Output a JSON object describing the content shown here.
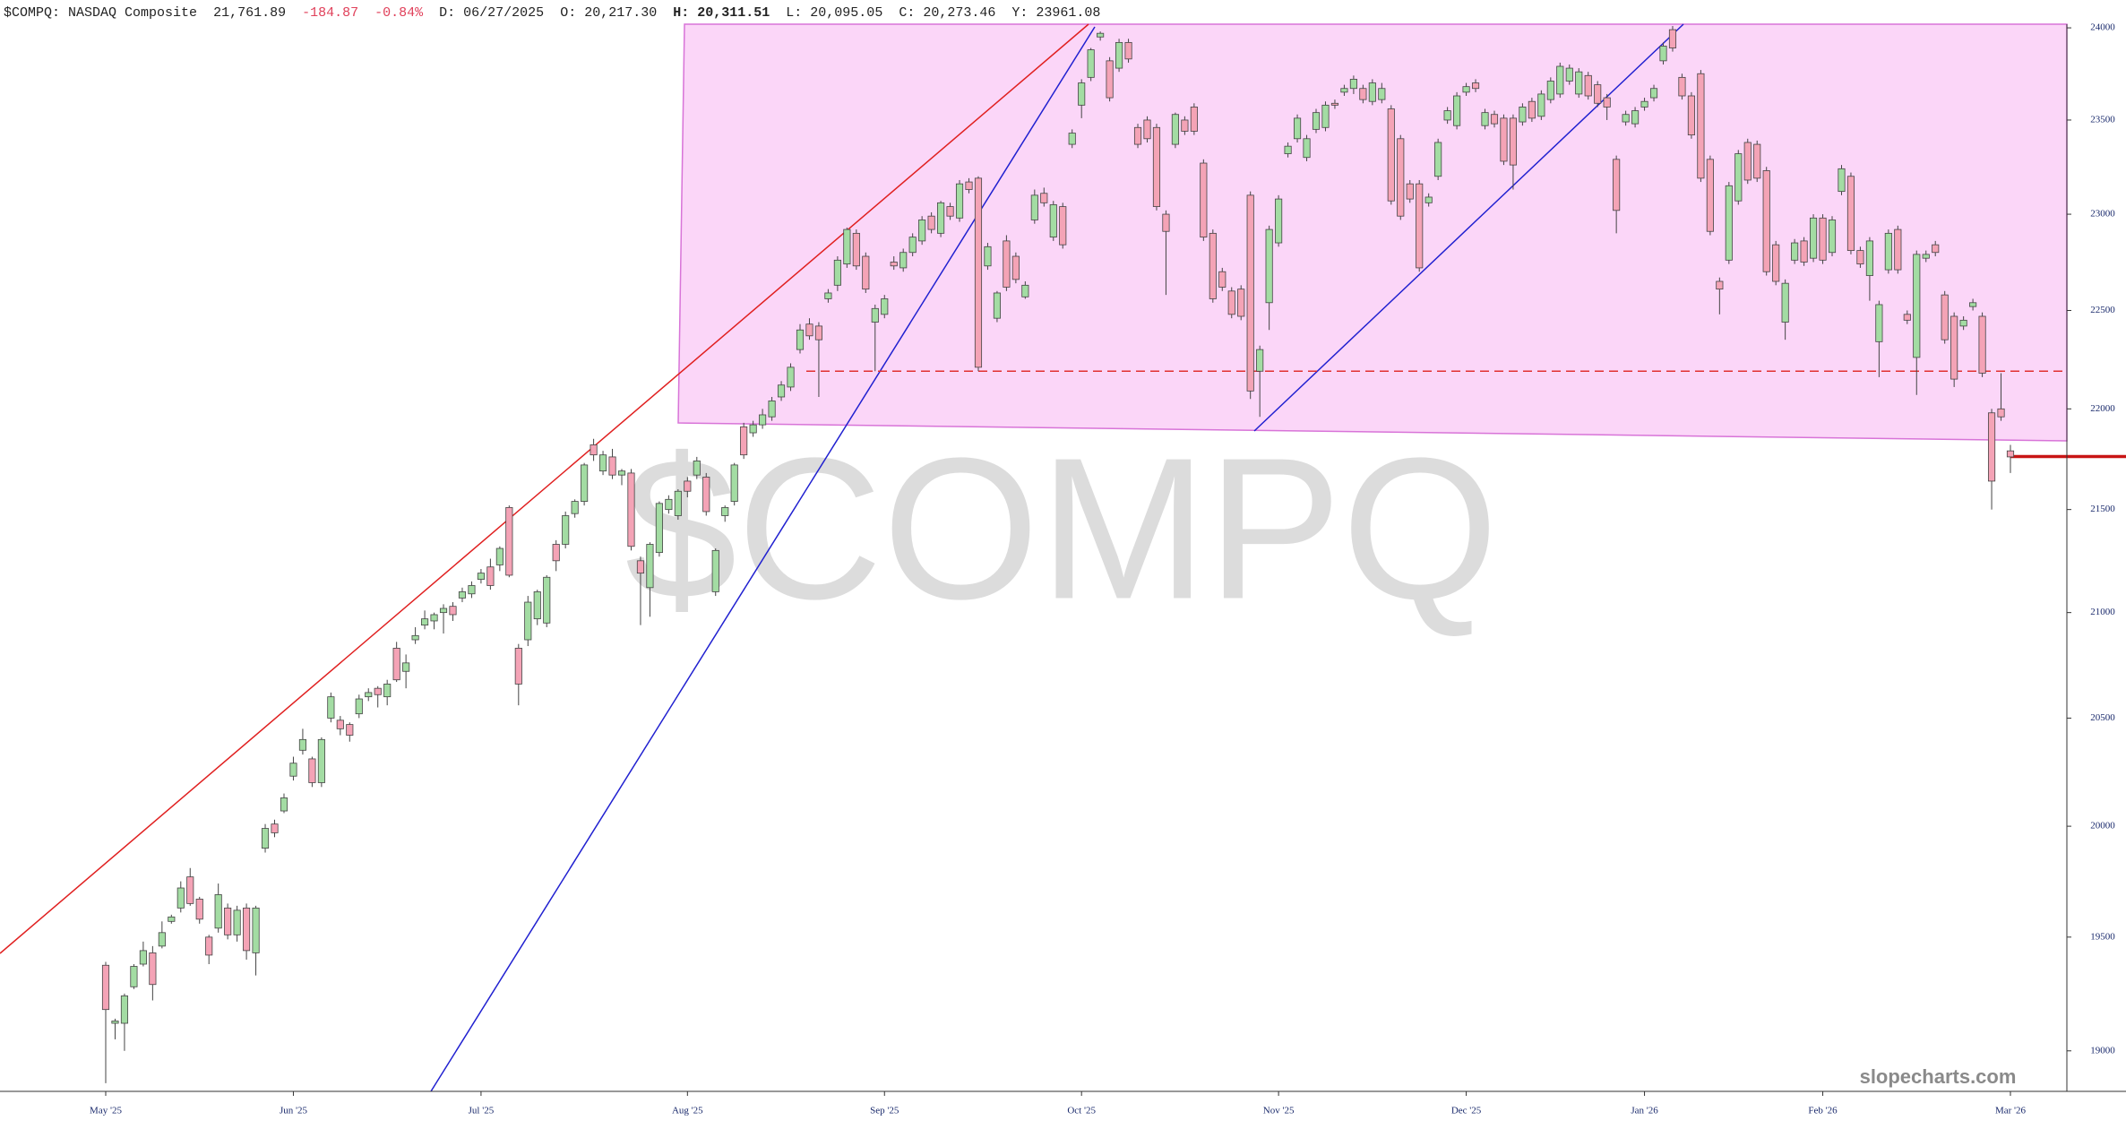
{
  "header": {
    "symbol": "$COMPQ: NASDAQ Composite",
    "last": "21,761.89",
    "change": "-184.87",
    "change_pct": "-0.84%",
    "date": "D: 06/27/2025",
    "open": "O: 20,217.30",
    "high": "H: 20,311.51",
    "low": "L: 20,095.05",
    "close": "C: 20,273.46",
    "y": "Y:  23961.08"
  },
  "brand": "slopecharts.com",
  "chart_data": {
    "type": "candlestick",
    "watermark": "$COMPQ",
    "up_color": "#a3dca3",
    "down_color": "#f4a3b6",
    "edge_color": "#444444",
    "log_scale": true,
    "ylim": [
      18825,
      24020
    ],
    "yticks": [
      19000,
      19500,
      20000,
      20500,
      21000,
      21500,
      22000,
      22500,
      23000,
      23500,
      24000
    ],
    "levels": [
      {
        "value": 22190,
        "style": "dashed",
        "color": "#e03030"
      },
      {
        "value": 21762,
        "style": "solid",
        "color": "#c81414"
      }
    ],
    "categories": [
      "May '25",
      null,
      null,
      null,
      null,
      null,
      null,
      null,
      null,
      null,
      null,
      null,
      null,
      null,
      null,
      null,
      null,
      null,
      null,
      null,
      "Jun '25",
      null,
      null,
      null,
      null,
      null,
      null,
      null,
      null,
      null,
      null,
      null,
      null,
      null,
      null,
      null,
      null,
      null,
      null,
      null,
      "Jul '25",
      null,
      null,
      null,
      null,
      null,
      null,
      null,
      null,
      null,
      null,
      null,
      null,
      null,
      null,
      null,
      null,
      null,
      null,
      null,
      null,
      null,
      "Aug '25",
      null,
      null,
      null,
      null,
      null,
      null,
      null,
      null,
      null,
      null,
      null,
      null,
      null,
      null,
      null,
      null,
      null,
      null,
      null,
      null,
      "Sep '25",
      null,
      null,
      null,
      null,
      null,
      null,
      null,
      null,
      null,
      null,
      null,
      null,
      null,
      null,
      null,
      null,
      null,
      null,
      null,
      null,
      "Oct '25",
      null,
      null,
      null,
      null,
      null,
      null,
      null,
      null,
      null,
      null,
      null,
      null,
      null,
      null,
      null,
      null,
      null,
      null,
      null,
      null,
      "Nov '25",
      null,
      null,
      null,
      null,
      null,
      null,
      null,
      null,
      null,
      null,
      null,
      null,
      null,
      null,
      null,
      null,
      null,
      null,
      null,
      "Dec '25",
      null,
      null,
      null,
      null,
      null,
      null,
      null,
      null,
      null,
      null,
      null,
      null,
      null,
      null,
      null,
      null,
      null,
      null,
      "Jan '26",
      null,
      null,
      null,
      null,
      null,
      null,
      null,
      null,
      null,
      null,
      null,
      null,
      null,
      null,
      null,
      null,
      null,
      null,
      "Feb '26",
      null,
      null,
      null,
      null,
      null,
      null,
      null,
      null,
      null,
      null,
      null,
      null,
      null,
      null,
      null,
      null,
      null,
      null,
      null,
      "Mar '26"
    ],
    "ohlc": [
      [
        19375,
        19390,
        18860,
        19180
      ],
      [
        19120,
        19140,
        19050,
        19130
      ],
      [
        19120,
        19250,
        19000,
        19240
      ],
      [
        19280,
        19380,
        19270,
        19370
      ],
      [
        19380,
        19480,
        19370,
        19440
      ],
      [
        19430,
        19460,
        19220,
        19290
      ],
      [
        19460,
        19570,
        19450,
        19520
      ],
      [
        19570,
        19600,
        19560,
        19590
      ],
      [
        19630,
        19750,
        19610,
        19720
      ],
      [
        19770,
        19810,
        19640,
        19650
      ],
      [
        19670,
        19680,
        19560,
        19580
      ],
      [
        19500,
        19510,
        19380,
        19420
      ],
      [
        19540,
        19740,
        19520,
        19690
      ],
      [
        19630,
        19650,
        19490,
        19510
      ],
      [
        19510,
        19640,
        19480,
        19620
      ],
      [
        19630,
        19650,
        19400,
        19440
      ],
      [
        19430,
        19640,
        19330,
        19630
      ],
      [
        19900,
        20010,
        19880,
        19990
      ],
      [
        20010,
        20030,
        19950,
        19970
      ],
      [
        20070,
        20150,
        20060,
        20130
      ],
      [
        20230,
        20320,
        20210,
        20290
      ],
      [
        20350,
        20450,
        20330,
        20400
      ],
      [
        20310,
        20320,
        20180,
        20200
      ],
      [
        20200,
        20410,
        20180,
        20400
      ],
      [
        20500,
        20620,
        20480,
        20600
      ],
      [
        20490,
        20510,
        20420,
        20450
      ],
      [
        20470,
        20480,
        20390,
        20420
      ],
      [
        20520,
        20610,
        20500,
        20590
      ],
      [
        20600,
        20640,
        20580,
        20620
      ],
      [
        20640,
        20650,
        20550,
        20610
      ],
      [
        20600,
        20680,
        20560,
        20660
      ],
      [
        20830,
        20860,
        20670,
        20680
      ],
      [
        20720,
        20800,
        20640,
        20760
      ],
      [
        20870,
        20930,
        20850,
        20890
      ],
      [
        20940,
        21010,
        20920,
        20970
      ],
      [
        20960,
        21000,
        20920,
        20990
      ],
      [
        21000,
        21040,
        20900,
        21020
      ],
      [
        21030,
        21050,
        20960,
        20990
      ],
      [
        21070,
        21120,
        21050,
        21100
      ],
      [
        21090,
        21150,
        21070,
        21130
      ],
      [
        21160,
        21210,
        21140,
        21190
      ],
      [
        21220,
        21260,
        21110,
        21130
      ],
      [
        21230,
        21320,
        21200,
        21310
      ],
      [
        21510,
        21520,
        21170,
        21180
      ],
      [
        20830,
        20850,
        20560,
        20660
      ],
      [
        20870,
        21080,
        20840,
        21050
      ],
      [
        20970,
        21110,
        20940,
        21100
      ],
      [
        20950,
        21180,
        20930,
        21170
      ],
      [
        21330,
        21350,
        21200,
        21250
      ],
      [
        21330,
        21490,
        21310,
        21470
      ],
      [
        21480,
        21550,
        21460,
        21540
      ],
      [
        21540,
        21730,
        21520,
        21720
      ],
      [
        21820,
        21850,
        21740,
        21770
      ],
      [
        21690,
        21790,
        21670,
        21770
      ],
      [
        21760,
        21800,
        21650,
        21670
      ],
      [
        21670,
        21700,
        21620,
        21690
      ],
      [
        21680,
        21700,
        21300,
        21320
      ],
      [
        21250,
        21270,
        20940,
        21190
      ],
      [
        21120,
        21340,
        20980,
        21330
      ],
      [
        21290,
        21540,
        21270,
        21530
      ],
      [
        21500,
        21570,
        21480,
        21550
      ],
      [
        21470,
        21600,
        21450,
        21590
      ],
      [
        21640,
        21660,
        21560,
        21590
      ],
      [
        21670,
        21760,
        21650,
        21740
      ],
      [
        21660,
        21680,
        21470,
        21490
      ],
      [
        21100,
        21310,
        21080,
        21300
      ],
      [
        21470,
        21520,
        21440,
        21510
      ],
      [
        21540,
        21730,
        21520,
        21720
      ],
      [
        21910,
        21930,
        21750,
        21770
      ],
      [
        21880,
        21940,
        21860,
        21920
      ],
      [
        21920,
        22000,
        21900,
        21970
      ],
      [
        21960,
        22060,
        21940,
        22040
      ],
      [
        22060,
        22140,
        22040,
        22120
      ],
      [
        22110,
        22230,
        22090,
        22210
      ],
      [
        22300,
        22430,
        22280,
        22400
      ],
      [
        22430,
        22460,
        22350,
        22370
      ],
      [
        22420,
        22440,
        22060,
        22350
      ],
      [
        22560,
        22610,
        22540,
        22590
      ],
      [
        22630,
        22780,
        22600,
        22760
      ],
      [
        22740,
        22930,
        22720,
        22920
      ],
      [
        22900,
        22920,
        22710,
        22730
      ],
      [
        22780,
        22800,
        22590,
        22610
      ],
      [
        22440,
        22530,
        22190,
        22510
      ],
      [
        22480,
        22580,
        22460,
        22560
      ],
      [
        22750,
        22780,
        22710,
        22730
      ],
      [
        22720,
        22820,
        22700,
        22800
      ],
      [
        22800,
        22900,
        22780,
        22880
      ],
      [
        22860,
        22990,
        22840,
        22970
      ],
      [
        22990,
        23010,
        22900,
        22920
      ],
      [
        22900,
        23070,
        22880,
        23060
      ],
      [
        23040,
        23060,
        22970,
        22990
      ],
      [
        22980,
        23180,
        22960,
        23160
      ],
      [
        23170,
        23190,
        23110,
        23130
      ],
      [
        23190,
        23200,
        22190,
        22210
      ],
      [
        22730,
        22850,
        22710,
        22830
      ],
      [
        22460,
        22600,
        22440,
        22590
      ],
      [
        22860,
        22890,
        22600,
        22620
      ],
      [
        22780,
        22800,
        22640,
        22660
      ],
      [
        22570,
        22650,
        22560,
        22630
      ],
      [
        22970,
        23130,
        22950,
        23100
      ],
      [
        23110,
        23140,
        23040,
        23060
      ],
      [
        22880,
        23070,
        22860,
        23050
      ],
      [
        23040,
        23060,
        22820,
        22840
      ],
      [
        23370,
        23450,
        23350,
        23430
      ],
      [
        23580,
        23720,
        23510,
        23700
      ],
      [
        23730,
        23890,
        23710,
        23880
      ],
      [
        23950,
        23980,
        23930,
        23970
      ],
      [
        23820,
        23840,
        23600,
        23620
      ],
      [
        23780,
        23940,
        23760,
        23920
      ],
      [
        23920,
        23940,
        23810,
        23830
      ],
      [
        23460,
        23480,
        23350,
        23370
      ],
      [
        23500,
        23520,
        23380,
        23400
      ],
      [
        23460,
        23480,
        23020,
        23040
      ],
      [
        23000,
        23020,
        22580,
        22910
      ],
      [
        23370,
        23540,
        23350,
        23530
      ],
      [
        23500,
        23520,
        23420,
        23440
      ],
      [
        23570,
        23590,
        23420,
        23440
      ],
      [
        23270,
        23290,
        22860,
        22880
      ],
      [
        22900,
        22920,
        22540,
        22560
      ],
      [
        22700,
        22720,
        22600,
        22620
      ],
      [
        22600,
        22620,
        22460,
        22480
      ],
      [
        22610,
        22630,
        22450,
        22470
      ],
      [
        23100,
        23120,
        22050,
        22090
      ],
      [
        22190,
        22320,
        21960,
        22300
      ],
      [
        22540,
        22940,
        22400,
        22920
      ],
      [
        22850,
        23100,
        22830,
        23080
      ],
      [
        23320,
        23380,
        23300,
        23360
      ],
      [
        23400,
        23530,
        23380,
        23510
      ],
      [
        23300,
        23420,
        23280,
        23400
      ],
      [
        23450,
        23560,
        23430,
        23540
      ],
      [
        23460,
        23600,
        23440,
        23580
      ],
      [
        23590,
        23610,
        23560,
        23580
      ],
      [
        23650,
        23690,
        23630,
        23670
      ],
      [
        23670,
        23740,
        23640,
        23720
      ],
      [
        23670,
        23690,
        23590,
        23610
      ],
      [
        23600,
        23720,
        23580,
        23700
      ],
      [
        23610,
        23700,
        23590,
        23670
      ],
      [
        23560,
        23580,
        23050,
        23070
      ],
      [
        23400,
        23420,
        22970,
        22990
      ],
      [
        23160,
        23180,
        23060,
        23080
      ],
      [
        23160,
        23180,
        22700,
        22720
      ],
      [
        23060,
        23110,
        23040,
        23090
      ],
      [
        23200,
        23400,
        23180,
        23380
      ],
      [
        23500,
        23570,
        23480,
        23550
      ],
      [
        23470,
        23650,
        23450,
        23630
      ],
      [
        23650,
        23700,
        23630,
        23680
      ],
      [
        23700,
        23720,
        23650,
        23670
      ],
      [
        23470,
        23560,
        23450,
        23540
      ],
      [
        23530,
        23550,
        23460,
        23480
      ],
      [
        23510,
        23530,
        23260,
        23280
      ],
      [
        23510,
        23530,
        23130,
        23260
      ],
      [
        23490,
        23590,
        23470,
        23570
      ],
      [
        23600,
        23620,
        23490,
        23510
      ],
      [
        23520,
        23660,
        23500,
        23640
      ],
      [
        23610,
        23730,
        23590,
        23710
      ],
      [
        23640,
        23810,
        23620,
        23790
      ],
      [
        23710,
        23800,
        23690,
        23780
      ],
      [
        23640,
        23780,
        23620,
        23760
      ],
      [
        23740,
        23760,
        23610,
        23630
      ],
      [
        23690,
        23710,
        23570,
        23590
      ],
      [
        23620,
        23640,
        23500,
        23570
      ],
      [
        23290,
        23310,
        22900,
        23020
      ],
      [
        23490,
        23550,
        23470,
        23530
      ],
      [
        23480,
        23570,
        23460,
        23550
      ],
      [
        23570,
        23620,
        23550,
        23600
      ],
      [
        23620,
        23690,
        23600,
        23670
      ],
      [
        23820,
        23920,
        23800,
        23900
      ],
      [
        23990,
        24010,
        23870,
        23890
      ],
      [
        23730,
        23750,
        23610,
        23630
      ],
      [
        23630,
        23650,
        23400,
        23420
      ],
      [
        23750,
        23770,
        23170,
        23190
      ],
      [
        23290,
        23310,
        22890,
        22910
      ],
      [
        22650,
        22670,
        22480,
        22610
      ],
      [
        22760,
        23170,
        22740,
        23150
      ],
      [
        23070,
        23340,
        23050,
        23320
      ],
      [
        23380,
        23400,
        23160,
        23180
      ],
      [
        23370,
        23390,
        23170,
        23190
      ],
      [
        23230,
        23250,
        22680,
        22700
      ],
      [
        22840,
        22860,
        22630,
        22650
      ],
      [
        22440,
        22660,
        22350,
        22640
      ],
      [
        22760,
        22870,
        22740,
        22850
      ],
      [
        22860,
        22880,
        22730,
        22750
      ],
      [
        22770,
        23000,
        22750,
        22980
      ],
      [
        22980,
        23000,
        22740,
        22760
      ],
      [
        22800,
        22990,
        22780,
        22970
      ],
      [
        23120,
        23260,
        23100,
        23240
      ],
      [
        23200,
        23220,
        22790,
        22810
      ],
      [
        22810,
        22830,
        22720,
        22740
      ],
      [
        22680,
        22880,
        22550,
        22860
      ],
      [
        22340,
        22550,
        22160,
        22530
      ],
      [
        22710,
        22920,
        22690,
        22900
      ],
      [
        22920,
        22940,
        22690,
        22710
      ],
      [
        22480,
        22500,
        22430,
        22450
      ],
      [
        22260,
        22810,
        22070,
        22790
      ],
      [
        22770,
        22810,
        22750,
        22790
      ],
      [
        22840,
        22860,
        22780,
        22800
      ],
      [
        22580,
        22600,
        22330,
        22350
      ],
      [
        22470,
        22490,
        22110,
        22150
      ],
      [
        22420,
        22470,
        22400,
        22450
      ],
      [
        22520,
        22560,
        22500,
        22540
      ],
      [
        22470,
        22490,
        22160,
        22180
      ],
      [
        21980,
        22000,
        21500,
        21640
      ],
      [
        22000,
        22180,
        21940,
        21960
      ],
      [
        21790,
        21820,
        21680,
        21760
      ]
    ]
  }
}
